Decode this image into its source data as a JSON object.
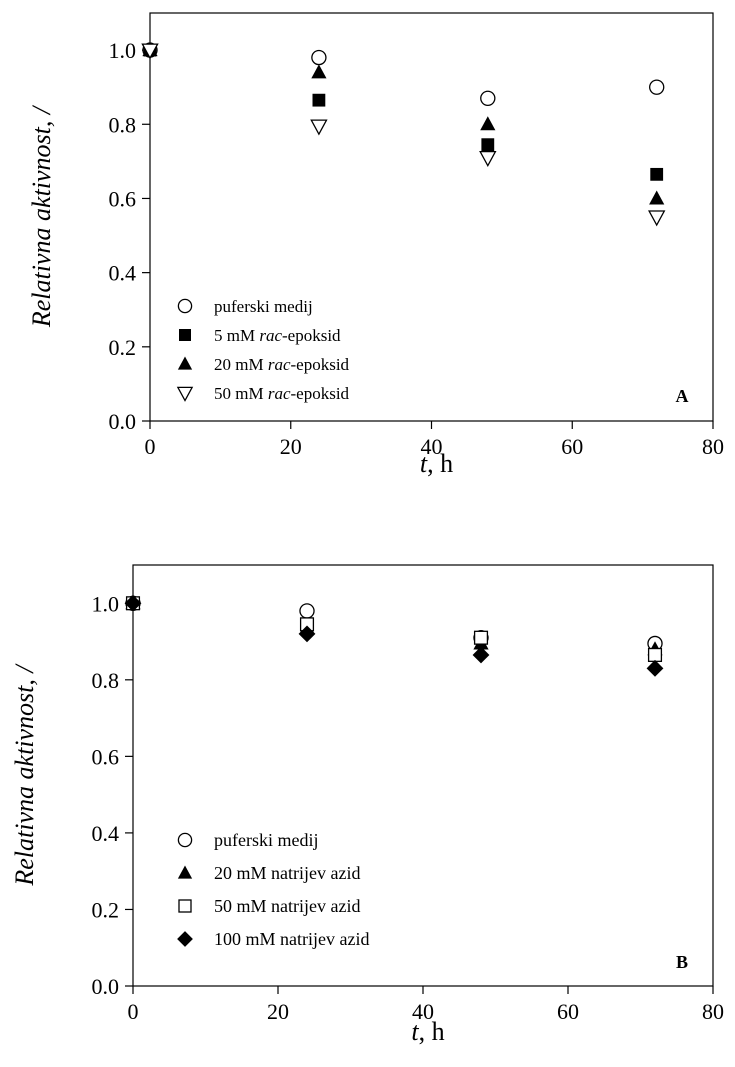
{
  "chart_data": [
    {
      "type": "scatter",
      "panel_label": "A",
      "xlabel": {
        "var": "t",
        "unit": ", h"
      },
      "ylabel": "Relativna aktivnost, /",
      "xlim": [
        0,
        80
      ],
      "ylim": [
        0,
        1.1
      ],
      "xticks": [
        "0",
        "20",
        "40",
        "60",
        "80"
      ],
      "yticks": [
        "0.0",
        "0.2",
        "0.4",
        "0.6",
        "0.8",
        "1.0"
      ],
      "legend_position": "lower-left",
      "series": [
        {
          "name": "puferski medij",
          "name_parts": [
            "puferski medij"
          ],
          "marker": "circle-open",
          "x": [
            0,
            24,
            48,
            72
          ],
          "y": [
            1.0,
            0.98,
            0.87,
            0.9
          ]
        },
        {
          "name": "5 mM rac-epoksid",
          "name_parts": [
            "5 mM ",
            "rac",
            "-epoksid"
          ],
          "marker": "square-filled",
          "x": [
            0,
            24,
            48,
            72
          ],
          "y": [
            1.0,
            0.865,
            0.745,
            0.665
          ]
        },
        {
          "name": "20 mM rac-epoksid",
          "name_parts": [
            "20 mM ",
            "rac",
            "-epoksid"
          ],
          "marker": "triangle-filled",
          "x": [
            0,
            24,
            48,
            72
          ],
          "y": [
            1.0,
            0.94,
            0.8,
            0.6
          ]
        },
        {
          "name": "50 mM rac-epoksid",
          "name_parts": [
            "50 mM ",
            "rac",
            "-epoksid"
          ],
          "marker": "triangle-down-open",
          "x": [
            0,
            24,
            48,
            72
          ],
          "y": [
            1.0,
            0.795,
            0.71,
            0.55
          ]
        }
      ]
    },
    {
      "type": "scatter",
      "panel_label": "B",
      "xlabel": {
        "var": "t",
        "unit": ", h"
      },
      "ylabel": "Relativna aktivnost, /",
      "xlim": [
        0,
        80
      ],
      "ylim": [
        0,
        1.1
      ],
      "xticks": [
        "0",
        "20",
        "40",
        "60",
        "80"
      ],
      "yticks": [
        "0.0",
        "0.2",
        "0.4",
        "0.6",
        "0.8",
        "1.0"
      ],
      "legend_position": "lower-left",
      "series": [
        {
          "name": "puferski medij",
          "name_parts": [
            "puferski medij"
          ],
          "marker": "circle-open",
          "x": [
            0,
            24,
            48,
            72
          ],
          "y": [
            1.0,
            0.98,
            0.91,
            0.895
          ]
        },
        {
          "name": "20 mM natrijev azid",
          "name_parts": [
            "20 mM natrijev azid"
          ],
          "marker": "triangle-filled",
          "x": [
            0,
            24,
            48,
            72
          ],
          "y": [
            1.0,
            0.935,
            0.895,
            0.88
          ]
        },
        {
          "name": "50 mM natrijev azid",
          "name_parts": [
            "50 mM natrijev azid"
          ],
          "marker": "square-open",
          "x": [
            0,
            24,
            48,
            72
          ],
          "y": [
            1.0,
            0.945,
            0.91,
            0.865
          ]
        },
        {
          "name": "100 mM natrijev azid",
          "name_parts": [
            "100 mM natrijev azid"
          ],
          "marker": "diamond-filled",
          "x": [
            0,
            24,
            48,
            72
          ],
          "y": [
            1.0,
            0.92,
            0.865,
            0.83
          ]
        }
      ]
    }
  ]
}
